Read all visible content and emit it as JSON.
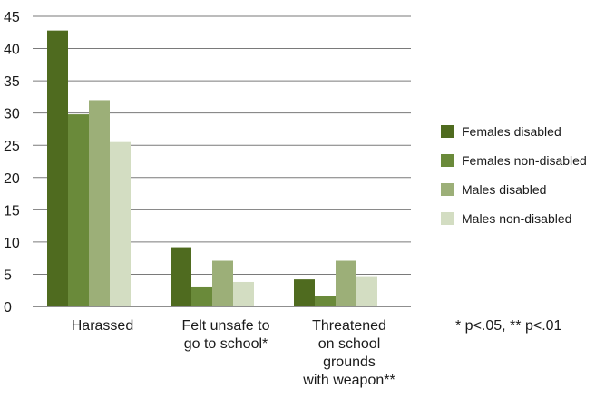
{
  "chart_data": {
    "type": "bar",
    "categories": [
      [
        "Harassed"
      ],
      [
        "Felt unsafe to",
        "go to school*"
      ],
      [
        "Threatened",
        "on school",
        "grounds",
        "with weapon**"
      ]
    ],
    "series": [
      {
        "name": "Females disabled",
        "color": "#4f6b1f",
        "values": [
          42.8,
          9.2,
          4.2
        ]
      },
      {
        "name": "Females non-disabled",
        "color": "#6a8a3a",
        "values": [
          29.8,
          3.1,
          1.6
        ]
      },
      {
        "name": "Males disabled",
        "color": "#9caf78",
        "values": [
          32.0,
          7.1,
          7.1
        ]
      },
      {
        "name": "Males non-disabled",
        "color": "#d3ddc2",
        "values": [
          25.5,
          3.8,
          4.7
        ]
      }
    ],
    "ylim": [
      0,
      45
    ],
    "yticks": [
      0,
      5,
      10,
      15,
      20,
      25,
      30,
      35,
      40,
      45
    ],
    "grid": true,
    "legend_position": "right",
    "annotation": "* p<.05, ** p<.01"
  }
}
